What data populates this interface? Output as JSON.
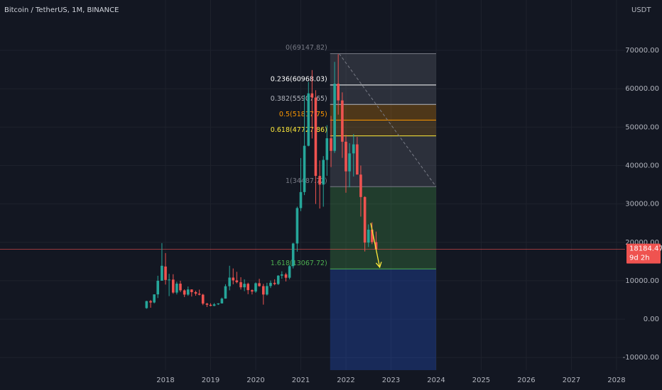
{
  "chart_data": {
    "type": "candlestick",
    "title": "Bitcoin / TetherUS, 1M, BINANCE",
    "y_axis_label": "USDT",
    "up_color": "#26a69a",
    "down_color": "#ef5350",
    "xlim": [
      2014.33,
      2028.19
    ],
    "ylim": [
      -13280,
      83100
    ],
    "xticks": [
      2018,
      2019,
      2020,
      2021,
      2022,
      2023,
      2024,
      2025,
      2026,
      2027,
      2028
    ],
    "yticks": [
      {
        "value": 70000,
        "label": "70000.00"
      },
      {
        "value": 60000,
        "label": "60000.00"
      },
      {
        "value": 50000,
        "label": "50000.00"
      },
      {
        "value": 40000,
        "label": "40000.00"
      },
      {
        "value": 30000,
        "label": "30000.00"
      },
      {
        "value": 20000,
        "label": "20000.00"
      },
      {
        "value": 10000,
        "label": "10000.00"
      },
      {
        "value": 0,
        "label": "0.00"
      },
      {
        "value": -10000,
        "label": "-10000.00"
      }
    ],
    "grid": true,
    "x": [
      2017.58,
      2017.67,
      2017.75,
      2017.83,
      2017.92,
      2018.0,
      2018.08,
      2018.17,
      2018.25,
      2018.33,
      2018.42,
      2018.5,
      2018.58,
      2018.67,
      2018.75,
      2018.83,
      2018.92,
      2019.0,
      2019.08,
      2019.17,
      2019.25,
      2019.33,
      2019.42,
      2019.5,
      2019.58,
      2019.67,
      2019.75,
      2019.83,
      2019.92,
      2020.0,
      2020.08,
      2020.17,
      2020.25,
      2020.33,
      2020.42,
      2020.5,
      2020.58,
      2020.67,
      2020.75,
      2020.83,
      2020.92,
      2021.0,
      2021.08,
      2021.17,
      2021.25,
      2021.33,
      2021.42,
      2021.5,
      2021.58,
      2021.67,
      2021.75,
      2021.83,
      2021.92,
      2022.0,
      2022.08,
      2022.17,
      2022.25,
      2022.33,
      2022.42,
      2022.5,
      2022.58,
      2022.67
    ],
    "open": [
      2870,
      4700,
      4340,
      6450,
      10000,
      13700,
      10200,
      10300,
      6920,
      9240,
      7490,
      6390,
      7730,
      7030,
      6630,
      6370,
      4040,
      3740,
      3460,
      3850,
      4100,
      5350,
      8570,
      10820,
      10090,
      9630,
      8290,
      9200,
      7560,
      7190,
      9350,
      8600,
      6410,
      8620,
      9450,
      9140,
      11330,
      11650,
      10780,
      13800,
      19700,
      28920,
      33090,
      45140,
      58790,
      57700,
      37300,
      35040,
      41460,
      47100,
      43820,
      61300,
      56950,
      46200,
      38480,
      43160,
      45510,
      37640,
      31800,
      19930,
      23300,
      20050
    ],
    "high": [
      4780,
      5000,
      6470,
      11300,
      19800,
      17200,
      11800,
      11700,
      9750,
      10000,
      7760,
      8500,
      7760,
      7410,
      7680,
      6600,
      4250,
      4140,
      4200,
      4140,
      5620,
      9100,
      13900,
      13200,
      12330,
      10920,
      10370,
      9500,
      7750,
      9570,
      10500,
      9190,
      9460,
      10070,
      10380,
      11440,
      12470,
      12070,
      14100,
      19880,
      29300,
      41950,
      58350,
      61780,
      64850,
      59600,
      41330,
      42450,
      50500,
      52920,
      67000,
      69000,
      59050,
      47990,
      45820,
      48190,
      47450,
      40000,
      31990,
      24670,
      25200,
      22800
    ],
    "low": [
      2700,
      2970,
      4110,
      5500,
      10400,
      9000,
      6000,
      6600,
      6430,
      7030,
      5750,
      6070,
      5880,
      6100,
      6200,
      3650,
      3150,
      3350,
      3380,
      3690,
      4070,
      5330,
      7500,
      9060,
      9320,
      7710,
      7300,
      6500,
      6430,
      6850,
      8450,
      3780,
      6150,
      8110,
      8830,
      8900,
      10520,
      9820,
      10370,
      13200,
      17570,
      28130,
      32300,
      45000,
      47040,
      30000,
      28800,
      29280,
      37330,
      39600,
      43280,
      53250,
      42000,
      32920,
      34320,
      37150,
      37690,
      26700,
      17620,
      18780,
      19520,
      18180
    ],
    "close": [
      4700,
      4340,
      6450,
      10000,
      13900,
      10200,
      10300,
      6920,
      9240,
      7490,
      6390,
      7730,
      7030,
      6630,
      6370,
      4040,
      3740,
      3460,
      3850,
      4100,
      5350,
      8570,
      10820,
      10090,
      9630,
      8290,
      9200,
      7560,
      7190,
      9350,
      8600,
      6410,
      8620,
      9450,
      9140,
      11330,
      11650,
      10780,
      13800,
      19700,
      28920,
      33090,
      45140,
      58790,
      57700,
      37300,
      35040,
      41460,
      47100,
      43820,
      61300,
      56950,
      46200,
      38480,
      43160,
      45510,
      37640,
      31800,
      19930,
      23300,
      20050,
      18184.47
    ],
    "last_price": {
      "value": 18184.47,
      "label": "18184.47",
      "countdown": "9d 2h"
    },
    "fib": {
      "x": [
        2021.65,
        2024.0
      ],
      "levels": [
        {
          "value": 69147.82,
          "label": "0(69147.82)",
          "color": "#787b86",
          "zone_color": null
        },
        {
          "value": 60968.03,
          "label": "0.236(60968.03)",
          "color": "#ffffff",
          "zone_color": "#787b86"
        },
        {
          "value": 55907.65,
          "label": "0.382(55907.65)",
          "color": "#b2b5be",
          "zone_color": "#787b86"
        },
        {
          "value": 51817.75,
          "label": "0.5(51817.75)",
          "color": "#ff9800",
          "zone_color": "#ff9800"
        },
        {
          "value": 47727.86,
          "label": "0.618(47727.86)",
          "color": "#ffeb3b",
          "zone_color": "#c98a2a"
        },
        {
          "value": 34487.72,
          "label": "1(34487.72)",
          "color": "#787b86",
          "zone_color": "#787b86"
        },
        {
          "value": 13067.72,
          "label": "1.618(13067.72)",
          "color": "#4caf50",
          "zone_color": "#4caf50"
        }
      ],
      "below_color": "#2962ff"
    },
    "trend_line": {
      "x": [
        2021.85,
        2024.0
      ],
      "y": [
        69147.82,
        34487.72
      ],
      "color": "#787b86"
    },
    "arrow": {
      "x": [
        2022.55,
        2022.75
      ],
      "y": [
        25000,
        13500
      ],
      "color": "#ffeb3b"
    }
  }
}
